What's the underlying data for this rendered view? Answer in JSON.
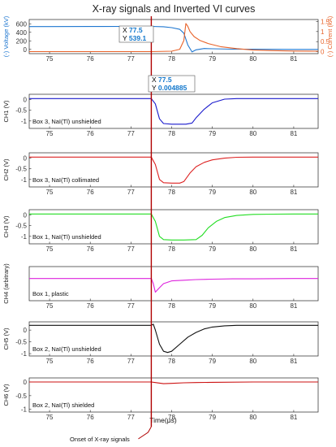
{
  "figure": {
    "title": "X-ray signals and Inverted VI curves",
    "xlabel": "Time(μs)",
    "annotation": "Onset of X-ray signals",
    "marker_color": "#b00000"
  },
  "datatips": [
    {
      "x_label": "X",
      "x_value": "77.5",
      "y_label": "Y",
      "y_value": "539.1"
    },
    {
      "x_label": "X",
      "x_value": "77.5",
      "y_label": "Y",
      "y_value": "0.004885"
    }
  ],
  "chart_data": [
    {
      "type": "line",
      "ylabel": "(-) Voltage (kV)",
      "ylabel_right": "(-) Current (kA)",
      "xlim": [
        74.5,
        81.6
      ],
      "ylim": [
        -100,
        700
      ],
      "ylim_right": [
        -0.1,
        1.6
      ],
      "x_ticks": [
        75,
        76,
        77,
        78,
        79,
        80,
        81
      ],
      "y_ticks": [
        0,
        200,
        400,
        600
      ],
      "y_ticks_right": [
        0,
        0.5,
        1,
        1.5
      ],
      "series": [
        {
          "name": "(-) Voltage (kV)",
          "axis": "left",
          "color": "#1f77d0",
          "x": [
            74.5,
            75,
            76,
            77,
            77.5,
            77.8,
            78.0,
            78.2,
            78.3,
            78.4,
            78.5,
            78.6,
            78.8,
            79.0,
            79.5,
            80.0,
            81.0,
            81.6
          ],
          "y": [
            535,
            535,
            536,
            538,
            539,
            530,
            510,
            470,
            380,
            100,
            -60,
            -10,
            20,
            15,
            5,
            3,
            0,
            0
          ]
        },
        {
          "name": "(-) Current (kA)",
          "axis": "right",
          "color": "#e8632a",
          "x": [
            74.5,
            77.0,
            77.5,
            78.0,
            78.2,
            78.3,
            78.35,
            78.4,
            78.45,
            78.55,
            78.7,
            78.9,
            79.2,
            79.6,
            80.0,
            80.5,
            81.0,
            81.6
          ],
          "y": [
            0.0,
            0.0,
            0.0,
            0.02,
            0.12,
            0.55,
            1.4,
            1.25,
            1.0,
            0.75,
            0.55,
            0.4,
            0.25,
            0.15,
            0.08,
            0.05,
            0.03,
            0.02
          ]
        }
      ]
    },
    {
      "type": "line",
      "ylabel": "CH1 (V)",
      "label": "Box 3, NaI(Tl) unshielded",
      "xlim": [
        74.5,
        81.6
      ],
      "ylim": [
        -1.35,
        0.25
      ],
      "x_ticks": [
        75,
        76,
        77,
        78,
        79,
        80,
        81
      ],
      "y_ticks": [
        -1,
        -0.5,
        0
      ],
      "series": [
        {
          "color": "#1a1acc",
          "x": [
            74.5,
            77.5,
            77.6,
            77.7,
            77.8,
            78.0,
            78.2,
            78.35,
            78.5,
            78.6,
            78.8,
            79.0,
            79.3,
            79.6,
            80.0,
            81.0,
            81.6
          ],
          "y": [
            0.05,
            0.05,
            -0.2,
            -0.9,
            -1.12,
            -1.15,
            -1.15,
            -1.15,
            -1.1,
            -0.85,
            -0.45,
            -0.15,
            0.02,
            0.05,
            0.05,
            0.05,
            0.05
          ]
        }
      ]
    },
    {
      "type": "line",
      "ylabel": "CH2 (V)",
      "label": "Box 3, NaI(Tl) collimated",
      "xlim": [
        74.5,
        81.6
      ],
      "ylim": [
        -1.35,
        0.25
      ],
      "x_ticks": [
        75,
        76,
        77,
        78,
        79,
        80,
        81
      ],
      "y_ticks": [
        -1,
        -0.5,
        0
      ],
      "series": [
        {
          "color": "#dd2222",
          "x": [
            74.5,
            77.5,
            77.6,
            77.7,
            77.8,
            78.0,
            78.2,
            78.3,
            78.45,
            78.6,
            78.8,
            79.0,
            79.3,
            79.6,
            80.0,
            81.0,
            81.6
          ],
          "y": [
            0.05,
            0.05,
            -0.3,
            -1.0,
            -1.15,
            -1.17,
            -1.17,
            -1.1,
            -0.7,
            -0.4,
            -0.2,
            -0.08,
            0.0,
            0.04,
            0.05,
            0.05,
            0.05
          ]
        }
      ]
    },
    {
      "type": "line",
      "ylabel": "CH3 (V)",
      "label": "Box 1, NaI(Tl) unshielded",
      "xlim": [
        74.5,
        81.6
      ],
      "ylim": [
        -1.35,
        0.25
      ],
      "x_ticks": [
        75,
        76,
        77,
        78,
        79,
        80,
        81
      ],
      "y_ticks": [
        -1,
        -0.5,
        0
      ],
      "series": [
        {
          "color": "#22dd22",
          "x": [
            74.5,
            77.5,
            77.6,
            77.7,
            77.8,
            78.0,
            78.3,
            78.6,
            78.75,
            78.9,
            79.1,
            79.3,
            79.6,
            80.0,
            80.5,
            81.0,
            81.6
          ],
          "y": [
            0.05,
            0.05,
            -0.3,
            -1.0,
            -1.15,
            -1.17,
            -1.17,
            -1.15,
            -0.95,
            -0.6,
            -0.3,
            -0.12,
            -0.02,
            0.03,
            0.04,
            0.05,
            0.05
          ]
        }
      ]
    },
    {
      "type": "line",
      "ylabel": "CH4 (arbitrary)",
      "label": "Box 1, plastic",
      "xlim": [
        74.5,
        81.6
      ],
      "ylim": [
        -0.5,
        0.5
      ],
      "x_ticks": [
        75,
        76,
        77,
        78,
        79,
        80,
        81
      ],
      "y_ticks": [],
      "series": [
        {
          "color": "#dd22dd",
          "x": [
            74.5,
            77.5,
            77.55,
            77.6,
            77.7,
            77.8,
            78.0,
            78.3,
            78.6,
            79.0,
            79.5,
            80.0,
            81.0,
            81.6
          ],
          "y": [
            0.15,
            0.15,
            0.0,
            -0.25,
            -0.12,
            0.0,
            0.08,
            0.1,
            0.12,
            0.13,
            0.14,
            0.14,
            0.15,
            0.15
          ]
        }
      ]
    },
    {
      "type": "line",
      "ylabel": "CH5 (V)",
      "label": "Box 2, NaI(Tl) unshielded",
      "xlim": [
        74.5,
        81.6
      ],
      "ylim": [
        -1.1,
        0.35
      ],
      "x_ticks": [
        75,
        76,
        77,
        78,
        79,
        80,
        81
      ],
      "y_ticks": [
        -1,
        -0.5,
        0
      ],
      "series": [
        {
          "color": "#111111",
          "x": [
            74.5,
            77.5,
            77.55,
            77.6,
            77.7,
            77.8,
            77.9,
            78.0,
            78.2,
            78.4,
            78.6,
            78.8,
            79.0,
            79.3,
            79.6,
            80.0,
            81.0,
            81.6
          ],
          "y": [
            0.2,
            0.2,
            0.25,
            0.0,
            -0.6,
            -0.9,
            -0.95,
            -0.9,
            -0.6,
            -0.3,
            -0.1,
            0.05,
            0.13,
            0.18,
            0.2,
            0.2,
            0.2,
            0.2
          ]
        }
      ]
    },
    {
      "type": "line",
      "ylabel": "CH6 (V)",
      "label": "Box 2, NaI(Tl) shielded",
      "xlim": [
        74.5,
        81.6
      ],
      "ylim": [
        -1.1,
        0.15
      ],
      "x_ticks": [
        75,
        76,
        77,
        78,
        79,
        80,
        81
      ],
      "y_ticks": [
        -1,
        -0.5,
        0
      ],
      "series": [
        {
          "color": "#cc1111",
          "x": [
            74.5,
            77.5,
            77.6,
            77.8,
            78.0,
            78.3,
            78.6,
            79.0,
            80.0,
            81.0,
            81.6
          ],
          "y": [
            0.0,
            0.0,
            -0.02,
            -0.06,
            -0.05,
            -0.03,
            -0.02,
            -0.01,
            0.0,
            0.0,
            0.0
          ]
        }
      ]
    }
  ]
}
